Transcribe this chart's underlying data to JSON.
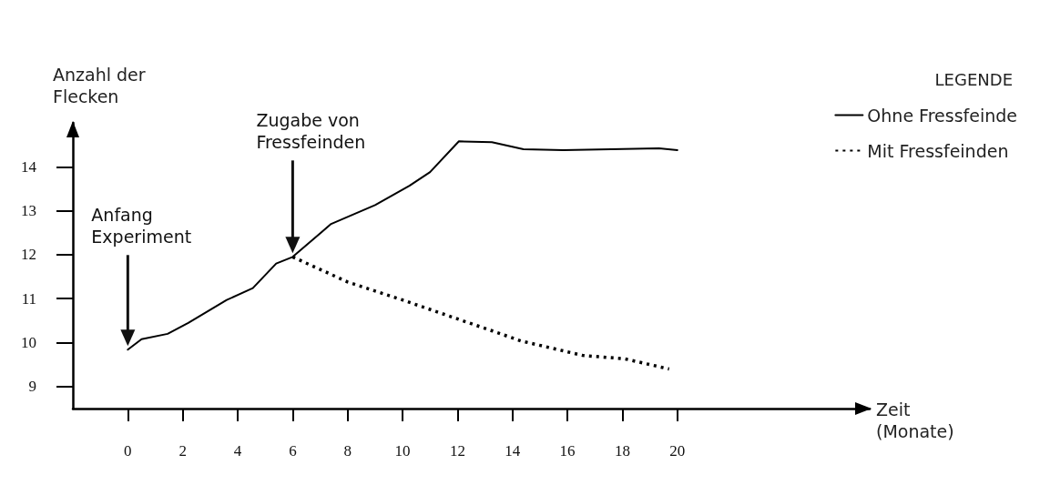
{
  "chart_data": {
    "type": "line",
    "xlabel": "Zeit (Monate)",
    "ylabel": "Anzahl der Flecken",
    "legend_title": "LEGENDE",
    "xlim": [
      -2,
      27
    ],
    "xticks": [
      0,
      2,
      4,
      6,
      8,
      10,
      12,
      14,
      16,
      18,
      20
    ],
    "ylim": [
      8.5,
      15
    ],
    "yticks": [
      9,
      10,
      11,
      12,
      13,
      14
    ],
    "grid": false,
    "legend": "top right",
    "marker": "none",
    "series": [
      {
        "name": "Ohne Fressfeinde",
        "color": "#000000",
        "line_style": "solid",
        "x": [
          0,
          0.5,
          1.45,
          2.2,
          3.6,
          4.55,
          5.4,
          6,
          7.4,
          9,
          10.25,
          11,
          12.05,
          13.25,
          14.4,
          15.85,
          19.33,
          20
        ],
        "values": [
          9.84,
          10.08,
          10.2,
          10.45,
          10.97,
          11.24,
          11.8,
          11.95,
          12.7,
          13.13,
          13.57,
          13.88,
          14.58,
          14.56,
          14.4,
          14.38,
          14.42,
          14.38
        ]
      },
      {
        "name": "Mit Fressfeinden",
        "color": "#000000",
        "line_style": "dotted",
        "x": [
          6,
          8,
          10,
          13.25,
          14.3,
          16.55,
          18.1,
          19.7
        ],
        "values": [
          11.95,
          11.38,
          10.97,
          10.27,
          10.04,
          9.71,
          9.63,
          9.4
        ]
      }
    ],
    "annotations": [
      "Anfang Experiment",
      "Zugabe von Fressfeinden"
    ]
  }
}
